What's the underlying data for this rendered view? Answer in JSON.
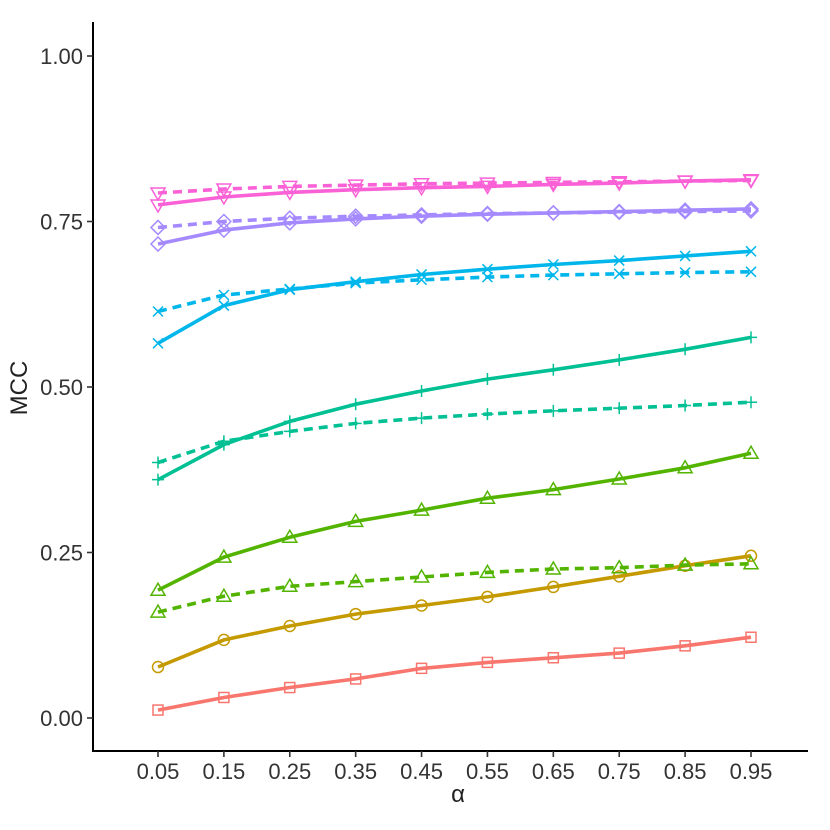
{
  "chart_data": {
    "type": "line",
    "xlabel": "α",
    "ylabel": "MCC",
    "x": [
      0.05,
      0.15,
      0.25,
      0.35,
      0.45,
      0.55,
      0.65,
      0.75,
      0.85,
      0.95
    ],
    "xticks": [
      "0.05",
      "0.15",
      "0.25",
      "0.35",
      "0.45",
      "0.55",
      "0.65",
      "0.75",
      "0.85",
      "0.95"
    ],
    "yticks": [
      "0.00",
      "0.25",
      "0.50",
      "0.75",
      "1.00"
    ],
    "ylim": [
      -0.05,
      1.05
    ],
    "grid": false,
    "legend": "none",
    "series": [
      {
        "color": "#F8766D",
        "marker": "square",
        "dash": false,
        "values": [
          0.012,
          0.031,
          0.046,
          0.059,
          0.075,
          0.084,
          0.091,
          0.098,
          0.109,
          0.122
        ]
      },
      {
        "color": "#C49A00",
        "marker": "circle",
        "dash": false,
        "values": [
          0.077,
          0.118,
          0.139,
          0.157,
          0.17,
          0.183,
          0.198,
          0.214,
          0.23,
          0.245
        ]
      },
      {
        "color": "#53B400",
        "marker": "triangle-up",
        "dash": false,
        "values": [
          0.193,
          0.243,
          0.273,
          0.297,
          0.314,
          0.332,
          0.345,
          0.361,
          0.378,
          0.4
        ]
      },
      {
        "color": "#53B400",
        "marker": "triangle-up",
        "dash": true,
        "values": [
          0.16,
          0.184,
          0.199,
          0.206,
          0.213,
          0.22,
          0.225,
          0.227,
          0.231,
          0.233
        ]
      },
      {
        "color": "#00C094",
        "marker": "plus",
        "dash": false,
        "values": [
          0.36,
          0.413,
          0.448,
          0.474,
          0.494,
          0.512,
          0.526,
          0.541,
          0.557,
          0.575
        ]
      },
      {
        "color": "#00C094",
        "marker": "plus",
        "dash": true,
        "values": [
          0.386,
          0.418,
          0.433,
          0.445,
          0.453,
          0.459,
          0.464,
          0.468,
          0.472,
          0.477
        ]
      },
      {
        "color": "#00B6EB",
        "marker": "cross",
        "dash": false,
        "values": [
          0.566,
          0.623,
          0.647,
          0.659,
          0.67,
          0.678,
          0.685,
          0.691,
          0.698,
          0.705
        ]
      },
      {
        "color": "#00B6EB",
        "marker": "cross",
        "dash": true,
        "values": [
          0.614,
          0.639,
          0.648,
          0.657,
          0.662,
          0.666,
          0.669,
          0.671,
          0.673,
          0.674
        ]
      },
      {
        "color": "#A58AFF",
        "marker": "diamond",
        "dash": false,
        "values": [
          0.716,
          0.737,
          0.748,
          0.754,
          0.758,
          0.761,
          0.763,
          0.765,
          0.767,
          0.769
        ]
      },
      {
        "color": "#A58AFF",
        "marker": "diamond",
        "dash": true,
        "values": [
          0.741,
          0.75,
          0.755,
          0.758,
          0.76,
          0.762,
          0.763,
          0.764,
          0.765,
          0.766
        ]
      },
      {
        "color": "#FB61D7",
        "marker": "triangle-down",
        "dash": false,
        "values": [
          0.775,
          0.787,
          0.794,
          0.798,
          0.801,
          0.803,
          0.806,
          0.808,
          0.811,
          0.813
        ]
      },
      {
        "color": "#FB61D7",
        "marker": "triangle-down",
        "dash": true,
        "values": [
          0.793,
          0.799,
          0.803,
          0.805,
          0.807,
          0.808,
          0.809,
          0.81,
          0.811,
          0.812
        ]
      }
    ]
  }
}
